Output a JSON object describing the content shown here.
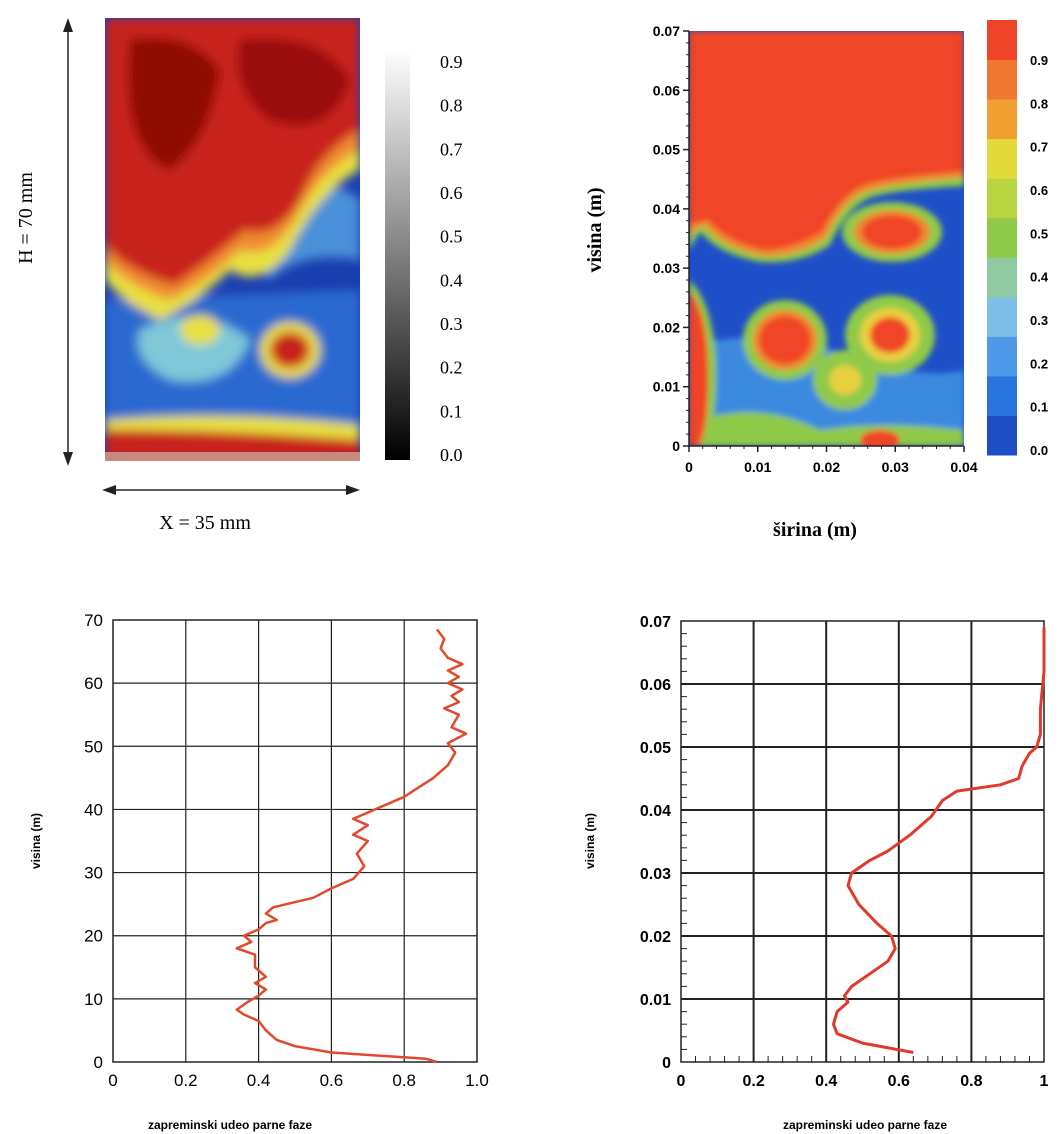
{
  "chart_data": [
    {
      "type": "heatmap",
      "panel": "experiment",
      "dimension_labels": {
        "height": "H = 70 mm",
        "width": "X = 35 mm"
      },
      "colorbar": {
        "scale": "grayscale",
        "ticks": [
          "0.0",
          "0.1",
          "0.2",
          "0.3",
          "0.4",
          "0.5",
          "0.6",
          "0.7",
          "0.8",
          "0.9"
        ]
      },
      "colors": {
        "low": "#1a3fb0",
        "mid": "#e8e040",
        "high": "#b01008"
      },
      "grid": false
    },
    {
      "type": "heatmap",
      "panel": "simulation",
      "xlabel": "širina (m)",
      "ylabel": "visina (m)",
      "xlim": [
        0,
        0.04
      ],
      "ylim": [
        0,
        0.07
      ],
      "x_ticks": [
        "0",
        "0.01",
        "0.02",
        "0.03",
        "0.04"
      ],
      "y_ticks": [
        "0",
        "0.01",
        "0.02",
        "0.03",
        "0.04",
        "0.05",
        "0.06",
        "0.07"
      ],
      "colorbar": {
        "scale": "jet",
        "ticks": [
          "0.0",
          "0.1",
          "0.2",
          "0.3",
          "0.4",
          "0.5",
          "0.6",
          "0.7",
          "0.8",
          "0.9"
        ]
      },
      "colors": {
        "low": "#1f4fc8",
        "mid": "#8fca4a",
        "high": "#f04428"
      },
      "grid": false
    },
    {
      "type": "line",
      "xlabel": "zapreminski udeo parne faze",
      "ylabel": "visina (m)",
      "xlim": [
        0,
        1.0
      ],
      "ylim": [
        0,
        70
      ],
      "x_ticks": [
        "0",
        "0.2",
        "0.4",
        "0.6",
        "0.8",
        "1.0"
      ],
      "y_ticks": [
        "0",
        "10",
        "20",
        "30",
        "40",
        "50",
        "60",
        "70"
      ],
      "grid": true,
      "series": [
        {
          "color": "#e04a2a",
          "points": [
            [
              0.89,
              0
            ],
            [
              0.86,
              0.5
            ],
            [
              0.6,
              1.5
            ],
            [
              0.5,
              2.5
            ],
            [
              0.45,
              3.5
            ],
            [
              0.42,
              5
            ],
            [
              0.4,
              6.5
            ],
            [
              0.36,
              7.5
            ],
            [
              0.34,
              8.3
            ],
            [
              0.37,
              9.5
            ],
            [
              0.4,
              10.5
            ],
            [
              0.42,
              11.5
            ],
            [
              0.39,
              12.5
            ],
            [
              0.42,
              13.5
            ],
            [
              0.39,
              15
            ],
            [
              0.39,
              17
            ],
            [
              0.34,
              18
            ],
            [
              0.38,
              19
            ],
            [
              0.36,
              20
            ],
            [
              0.4,
              21
            ],
            [
              0.42,
              22
            ],
            [
              0.45,
              22.5
            ],
            [
              0.42,
              23.5
            ],
            [
              0.44,
              24.5
            ],
            [
              0.55,
              26
            ],
            [
              0.6,
              27.5
            ],
            [
              0.66,
              29
            ],
            [
              0.69,
              31
            ],
            [
              0.67,
              33
            ],
            [
              0.7,
              35
            ],
            [
              0.66,
              36
            ],
            [
              0.7,
              37.5
            ],
            [
              0.66,
              38.5
            ],
            [
              0.72,
              40
            ],
            [
              0.8,
              42
            ],
            [
              0.84,
              43.5
            ],
            [
              0.88,
              45
            ],
            [
              0.92,
              47
            ],
            [
              0.94,
              49
            ],
            [
              0.92,
              50.5
            ],
            [
              0.97,
              52
            ],
            [
              0.93,
              53
            ],
            [
              0.95,
              55
            ],
            [
              0.91,
              56
            ],
            [
              0.95,
              57
            ],
            [
              0.93,
              58
            ],
            [
              0.96,
              59
            ],
            [
              0.92,
              60
            ],
            [
              0.95,
              61
            ],
            [
              0.92,
              62
            ],
            [
              0.96,
              63
            ],
            [
              0.92,
              64
            ],
            [
              0.9,
              65.5
            ],
            [
              0.91,
              67
            ],
            [
              0.89,
              68.5
            ]
          ]
        }
      ]
    },
    {
      "type": "line",
      "xlabel": "zapreminski udeo parne faze",
      "ylabel": "visina (m)",
      "xlim": [
        0,
        1
      ],
      "ylim": [
        0,
        0.07
      ],
      "x_ticks": [
        "0",
        "0.2",
        "0.4",
        "0.6",
        "0.8",
        "1"
      ],
      "y_ticks": [
        "0",
        "0.01",
        "0.02",
        "0.03",
        "0.04",
        "0.05",
        "0.06",
        "0.07"
      ],
      "grid": true,
      "series": [
        {
          "color": "#e03a2a",
          "points": [
            [
              0.64,
              0.0015
            ],
            [
              0.5,
              0.003
            ],
            [
              0.43,
              0.0045
            ],
            [
              0.42,
              0.006
            ],
            [
              0.43,
              0.008
            ],
            [
              0.46,
              0.0095
            ],
            [
              0.45,
              0.0105
            ],
            [
              0.47,
              0.012
            ],
            [
              0.52,
              0.014
            ],
            [
              0.57,
              0.016
            ],
            [
              0.59,
              0.018
            ],
            [
              0.58,
              0.02
            ],
            [
              0.54,
              0.022
            ],
            [
              0.49,
              0.025
            ],
            [
              0.46,
              0.028
            ],
            [
              0.47,
              0.03
            ],
            [
              0.52,
              0.032
            ],
            [
              0.57,
              0.0335
            ],
            [
              0.63,
              0.036
            ],
            [
              0.69,
              0.039
            ],
            [
              0.72,
              0.0415
            ],
            [
              0.76,
              0.043
            ],
            [
              0.88,
              0.044
            ],
            [
              0.93,
              0.045
            ],
            [
              0.94,
              0.047
            ],
            [
              0.96,
              0.049
            ],
            [
              0.98,
              0.05
            ],
            [
              0.99,
              0.052
            ],
            [
              0.99,
              0.056
            ],
            [
              1.0,
              0.062
            ],
            [
              1.0,
              0.069
            ]
          ]
        }
      ]
    }
  ]
}
